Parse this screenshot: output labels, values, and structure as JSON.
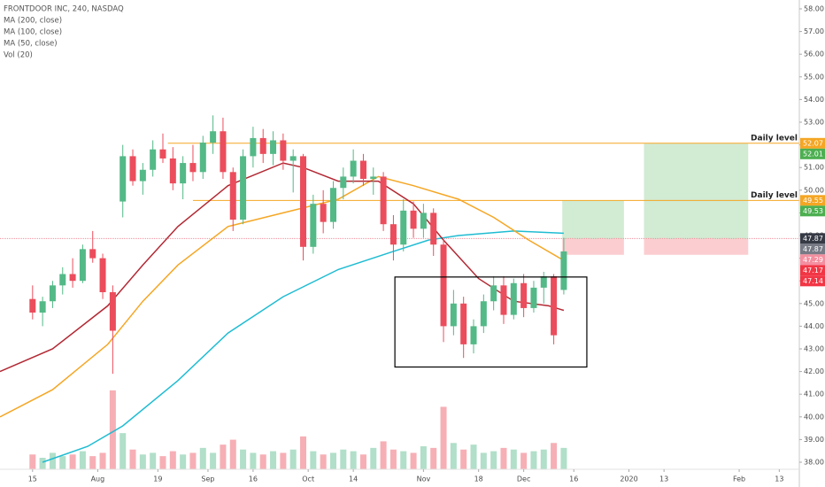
{
  "chart_data": {
    "type": "candlestick",
    "title": "FRONTDOOR INC, 240, NASDAQ",
    "indicator_labels": [
      "MA (200, close)",
      "MA (100, close)",
      "MA (50, close)",
      "Vol (20)"
    ],
    "x": [
      0,
      2,
      4,
      6,
      8,
      10,
      12,
      14,
      16,
      18,
      20,
      22,
      24,
      26,
      28,
      30,
      32,
      34,
      36,
      38,
      40,
      42,
      44,
      46,
      48,
      50,
      52,
      54,
      56,
      58,
      60,
      62,
      64,
      66,
      68,
      70,
      72,
      74,
      76,
      78,
      80,
      82,
      84,
      86,
      88,
      90,
      92,
      94,
      96,
      98,
      100,
      102,
      104,
      106
    ],
    "open": [
      45.2,
      44.6,
      45.1,
      45.8,
      46.3,
      46.0,
      47.4,
      47.0,
      45.5,
      49.5,
      51.5,
      50.4,
      50.9,
      51.8,
      51.4,
      50.3,
      51.2,
      50.8,
      52.1,
      52.6,
      50.8,
      48.7,
      51.5,
      52.3,
      51.6,
      52.2,
      51.3,
      51.5,
      47.5,
      49.4,
      48.6,
      50.1,
      50.6,
      51.3,
      50.5,
      50.6,
      48.5,
      47.6,
      49.1,
      48.3,
      49.0,
      47.6,
      44.0,
      45.0,
      43.2,
      44.0,
      45.1,
      45.8,
      44.5,
      45.9,
      44.8,
      45.7,
      46.2,
      45.6
    ],
    "high": [
      45.8,
      45.3,
      46.0,
      46.6,
      47.0,
      47.6,
      48.2,
      47.2,
      45.8,
      52.0,
      51.8,
      51.2,
      52.2,
      52.5,
      51.9,
      51.5,
      52.0,
      52.4,
      53.3,
      53.2,
      51.0,
      51.8,
      52.8,
      52.7,
      52.6,
      52.5,
      51.8,
      51.6,
      49.8,
      50.0,
      50.4,
      51.0,
      51.8,
      51.6,
      51.0,
      50.8,
      48.9,
      49.6,
      49.5,
      49.4,
      49.2,
      47.8,
      45.6,
      45.3,
      44.3,
      45.4,
      46.2,
      46.2,
      46.1,
      46.3,
      46.0,
      46.4,
      46.3,
      47.9
    ],
    "low": [
      44.3,
      44.0,
      44.8,
      45.4,
      45.7,
      45.9,
      46.8,
      45.2,
      41.9,
      48.8,
      50.2,
      49.8,
      50.6,
      51.2,
      50.0,
      49.6,
      50.4,
      50.5,
      51.6,
      50.5,
      48.2,
      48.5,
      51.0,
      51.2,
      51.1,
      50.9,
      49.9,
      46.9,
      47.2,
      48.1,
      48.3,
      49.6,
      50.3,
      50.2,
      49.8,
      48.2,
      46.9,
      47.3,
      47.9,
      47.9,
      47.1,
      43.3,
      43.6,
      42.6,
      42.8,
      43.7,
      44.7,
      44.1,
      44.3,
      44.4,
      44.6,
      45.0,
      43.2,
      45.4
    ],
    "close": [
      44.6,
      45.1,
      45.8,
      46.3,
      46.0,
      47.4,
      47.0,
      45.5,
      43.8,
      51.5,
      50.4,
      50.9,
      51.8,
      51.4,
      50.3,
      51.2,
      50.8,
      52.1,
      52.6,
      50.8,
      48.7,
      51.5,
      52.3,
      51.6,
      52.2,
      51.3,
      51.5,
      47.5,
      49.4,
      48.6,
      50.1,
      50.6,
      51.3,
      50.5,
      50.6,
      48.5,
      47.6,
      49.1,
      48.3,
      49.0,
      47.6,
      44.0,
      45.0,
      43.2,
      44.0,
      45.1,
      45.8,
      44.5,
      45.9,
      44.8,
      45.7,
      46.2,
      43.6,
      47.3
    ],
    "volume": [
      0.9,
      0.7,
      1.0,
      0.8,
      0.9,
      1.1,
      0.8,
      1.0,
      4.8,
      2.2,
      1.2,
      0.9,
      1.0,
      0.8,
      1.1,
      0.9,
      1.0,
      1.3,
      1.0,
      1.5,
      1.8,
      1.2,
      1.0,
      0.9,
      1.1,
      1.0,
      1.2,
      2.0,
      1.1,
      0.9,
      1.0,
      1.2,
      1.1,
      0.9,
      1.3,
      1.7,
      1.2,
      1.1,
      1.0,
      1.4,
      1.3,
      3.8,
      1.6,
      1.2,
      1.5,
      1.0,
      1.1,
      1.3,
      1.2,
      1.0,
      1.1,
      1.2,
      1.6,
      1.3
    ],
    "vlim": [
      0,
      7
    ],
    "up_color": "#53b987",
    "down_color": "#eb4d5c",
    "lines": [
      {
        "name": "MA (200, close)",
        "color": "#1fbcd2",
        "x": [
          2,
          11,
          18,
          29,
          39,
          50,
          61,
          72,
          79,
          85,
          96,
          106
        ],
        "values": [
          38.0,
          38.7,
          39.6,
          41.6,
          43.7,
          45.3,
          46.5,
          47.3,
          47.8,
          48.0,
          48.2,
          48.1
        ]
      },
      {
        "name": "MA (100, close)",
        "color": "#f5a623",
        "x": [
          -6.5,
          4,
          15,
          22,
          29,
          39,
          50,
          61,
          69,
          76,
          85,
          92,
          99,
          106
        ],
        "values": [
          40.0,
          41.2,
          43.2,
          45.1,
          46.7,
          48.4,
          49.0,
          49.6,
          50.6,
          50.2,
          49.6,
          48.8,
          47.8,
          46.9
        ]
      },
      {
        "name": "MA (50, close)",
        "color": "#b22833",
        "x": [
          -6.5,
          4,
          15,
          22,
          29,
          39,
          50,
          54,
          61,
          69,
          76,
          82,
          89,
          96,
          103,
          106
        ],
        "values": [
          42.0,
          43.0,
          44.9,
          46.7,
          48.4,
          50.2,
          51.2,
          51.0,
          50.4,
          50.4,
          49.4,
          47.8,
          46.1,
          45.1,
          44.9,
          44.7
        ]
      }
    ],
    "levels": [
      {
        "value": 52.07,
        "label": "Daily level",
        "color": "#f5a623",
        "x_start": 27
      },
      {
        "value": 49.55,
        "label": "Daily level",
        "color": "#f5a623",
        "x_start": 32
      }
    ],
    "price_line": {
      "value": 47.87,
      "color": "#f08c99"
    },
    "box": {
      "x": [
        72.3,
        110.6
      ],
      "y": [
        42.2,
        46.17
      ]
    },
    "positions": [
      {
        "x": [
          105.7,
          118
        ],
        "target": 49.55,
        "entry": 47.85,
        "stop": 47.15
      },
      {
        "x": [
          122,
          142.8
        ],
        "target": 52.07,
        "entry": 47.85,
        "stop": 47.15
      }
    ],
    "price_tags": [
      {
        "value": 52.07,
        "label": "52.07",
        "color": "#f5a623"
      },
      {
        "value": 52.01,
        "label": "52.01",
        "color": "#4caf50"
      },
      {
        "value": 49.55,
        "label": "49.55",
        "color": "#f5a623"
      },
      {
        "value": 49.53,
        "label": "49.53",
        "color": "#4caf50"
      },
      {
        "value": 47.87,
        "label": "47.87",
        "color": "#363a45"
      },
      {
        "value": 47.87,
        "label": "47.87",
        "color": "#787b86"
      },
      {
        "value": 47.29,
        "label": "47.29",
        "color": "#f48fa0"
      },
      {
        "value": 47.17,
        "label": "47.17",
        "color": "#f23645"
      },
      {
        "value": 47.14,
        "label": "47.14",
        "color": "#f23645"
      }
    ],
    "xlim": [
      -6.5,
      153
    ],
    "xticks": [
      {
        "value": 0,
        "label": "15"
      },
      {
        "value": 13,
        "label": "Aug"
      },
      {
        "value": 25,
        "label": "19"
      },
      {
        "value": 35,
        "label": "Sep"
      },
      {
        "value": 44,
        "label": "16"
      },
      {
        "value": 55,
        "label": "Oct"
      },
      {
        "value": 64,
        "label": "14"
      },
      {
        "value": 78,
        "label": "Nov"
      },
      {
        "value": 89,
        "label": "18"
      },
      {
        "value": 98,
        "label": "Dec"
      },
      {
        "value": 108,
        "label": "16"
      },
      {
        "value": 119,
        "label": "2020"
      },
      {
        "value": 126,
        "label": "13"
      },
      {
        "value": 141,
        "label": "Feb"
      },
      {
        "value": 149,
        "label": "13"
      }
    ],
    "ylim": [
      38,
      58
    ],
    "yticks": [
      {
        "value": 38,
        "label": "38.00"
      },
      {
        "value": 39,
        "label": "39.00"
      },
      {
        "value": 40,
        "label": "40.00"
      },
      {
        "value": 41,
        "label": "41.00"
      },
      {
        "value": 42,
        "label": "42.00"
      },
      {
        "value": 43,
        "label": "43.00"
      },
      {
        "value": 44,
        "label": "44.00"
      },
      {
        "value": 45,
        "label": "45.00"
      },
      {
        "value": 46,
        "label": "46.00"
      },
      {
        "value": 47,
        "label": "47.00"
      },
      {
        "value": 48,
        "label": "48.00"
      },
      {
        "value": 49,
        "label": "49.00"
      },
      {
        "value": 50,
        "label": "50.00"
      },
      {
        "value": 51,
        "label": "51.00"
      },
      {
        "value": 52,
        "label": "52.00"
      },
      {
        "value": 53,
        "label": "53.00"
      },
      {
        "value": 54,
        "label": "54.00"
      },
      {
        "value": 55,
        "label": "55.00"
      },
      {
        "value": 56,
        "label": "56.00"
      },
      {
        "value": 57,
        "label": "57.00"
      },
      {
        "value": 58,
        "label": "58.00"
      }
    ]
  }
}
